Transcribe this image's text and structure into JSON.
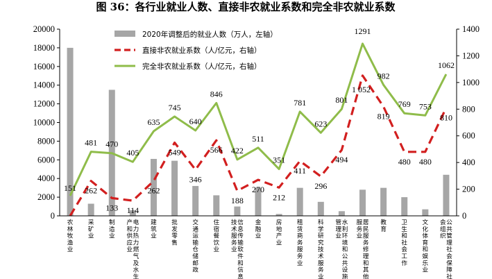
{
  "chart_data": {
    "type": "bar",
    "title": "图 36：各行业就业人数、直接非农就业系数和完全非农就业系数",
    "categories": [
      "农林牧渔业",
      "采矿业",
      "制造业",
      "电力热力燃气及水生产和供应业",
      "建筑业",
      "批发零售",
      "交通运输仓储邮政",
      "住宿餐饮业",
      "信息传输软件和信息技术服务业",
      "金融业",
      "房地产业",
      "租赁商务服务业",
      "科学研究技术服务业",
      "水利环境和公共设施管理业",
      "居民服务修理和其他服务业",
      "教育",
      "卫生和社会工作",
      "文化体育和娱乐业",
      "公共管理社会保障社会组织"
    ],
    "y_left": {
      "range": [
        0,
        20000
      ],
      "ticks": [
        "0",
        "2000",
        "4000",
        "6000",
        "8000",
        "10000",
        "12000",
        "14000",
        "16000",
        "18000",
        "20000"
      ]
    },
    "y_right": {
      "range": [
        0,
        1400
      ],
      "ticks": [
        "0",
        "200",
        "400",
        "600",
        "800",
        "1000",
        "1200",
        "1400"
      ]
    },
    "grid": false,
    "legend_position": "top",
    "series": [
      {
        "name": "2020年调整后的就业人数（万人，左轴）",
        "type": "bar",
        "axis": "left",
        "color": "#a6a6a6",
        "values": [
          18000,
          1300,
          13500,
          600,
          6100,
          5900,
          3200,
          2200,
          1000,
          3000,
          200,
          3000,
          1500,
          500,
          2800,
          3000,
          2000,
          700,
          4400
        ]
      },
      {
        "name": "直接非农就业系数（人/亿元，右轴）",
        "type": "line",
        "axis": "right",
        "style": "dashed",
        "color": "#d21f1f",
        "values": [
          0,
          262,
          133,
          114,
          262,
          549,
          346,
          566,
          188,
          270,
          212,
          411,
          296,
          494,
          1052,
          819,
          480,
          480,
          810
        ],
        "labels": [
          "",
          "262",
          "133",
          "114",
          "262",
          "549",
          "346",
          "566",
          "188",
          "270",
          "212",
          "411",
          "296",
          "494",
          "1 052",
          "819",
          "480",
          "480",
          "810"
        ]
      },
      {
        "name": "完全非农就业系数（人/亿元，右轴）",
        "type": "line",
        "axis": "right",
        "style": "solid",
        "color": "#8fbc4a",
        "values": [
          151,
          481,
          470,
          405,
          635,
          745,
          640,
          846,
          422,
          511,
          351,
          781,
          623,
          801,
          1291,
          982,
          769,
          753,
          1062
        ],
        "labels": [
          "151",
          "481",
          "470",
          "405",
          "635",
          "745",
          "640",
          "846",
          "422",
          "511",
          "351",
          "781",
          "623",
          "801",
          "1291",
          "982",
          "769",
          "753",
          "1062"
        ]
      }
    ]
  }
}
